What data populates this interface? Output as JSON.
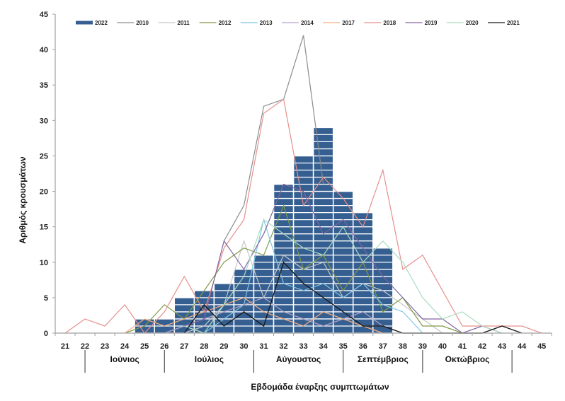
{
  "chart_data": {
    "type": "bar",
    "title": "",
    "xlabel": "Εβδομάδα έναρξης συμπτωμάτων",
    "ylabel": "Αριθμός κρουσμάτων",
    "ylim": [
      0,
      45
    ],
    "yticks": [
      0,
      5,
      10,
      15,
      20,
      25,
      30,
      35,
      40,
      45
    ],
    "x": [
      21,
      22,
      23,
      24,
      25,
      26,
      27,
      28,
      29,
      30,
      31,
      32,
      33,
      34,
      35,
      36,
      37,
      38,
      39,
      40,
      41,
      42,
      43,
      44,
      45
    ],
    "grid": false,
    "legend_position": "top",
    "months": [
      {
        "label": "Ιούνιος",
        "from_week": 22,
        "to_week": 26
      },
      {
        "label": "Ιούλιος",
        "from_week": 26,
        "to_week": 30.5
      },
      {
        "label": "Αύγουστος",
        "from_week": 30.5,
        "to_week": 35
      },
      {
        "label": "Σεπτέμβριος",
        "from_week": 35,
        "to_week": 39
      },
      {
        "label": "Οκτώβριος",
        "from_week": 39,
        "to_week": 43.5
      }
    ],
    "month_separators": [
      22,
      26,
      30.5,
      35,
      39,
      43.5
    ],
    "bar_series": {
      "name": "2022",
      "color": "#365F91",
      "values": [
        0,
        0,
        0,
        0,
        2,
        2,
        5,
        6,
        7,
        9,
        11,
        21,
        25,
        29,
        20,
        17,
        12,
        0,
        0,
        0,
        0,
        0,
        0,
        0,
        0
      ]
    },
    "series": [
      {
        "name": "2010",
        "color": "#8C8C8C",
        "values": [
          null,
          null,
          null,
          null,
          null,
          null,
          null,
          null,
          13,
          18,
          32,
          33,
          42,
          21,
          null,
          null,
          null,
          null,
          null,
          null,
          null,
          null,
          null,
          null,
          null
        ]
      },
      {
        "name": "2011",
        "color": "#C8C8C8",
        "values": [
          null,
          null,
          null,
          null,
          null,
          null,
          0,
          1,
          4,
          13,
          5,
          11,
          9,
          10,
          5,
          7,
          6,
          4,
          2,
          0,
          null,
          null,
          null,
          null,
          null
        ]
      },
      {
        "name": "2012",
        "color": "#7F9A48",
        "values": [
          null,
          null,
          null,
          0,
          1,
          4,
          2,
          6,
          10,
          12,
          11,
          18,
          9,
          11,
          6,
          10,
          3,
          5,
          1,
          1,
          0,
          null,
          null,
          null,
          null
        ]
      },
      {
        "name": "2013",
        "color": "#7EC8E3",
        "values": [
          null,
          null,
          null,
          null,
          null,
          0,
          1,
          0,
          2,
          4,
          16,
          7,
          6,
          7,
          5,
          7,
          4,
          3,
          0,
          null,
          null,
          null,
          null,
          null,
          null
        ]
      },
      {
        "name": "2014",
        "color": "#B3A2C7",
        "values": [
          null,
          null,
          null,
          null,
          null,
          0,
          1,
          2,
          3,
          4,
          5,
          3,
          2,
          1,
          2,
          3,
          1,
          null,
          null,
          null,
          null,
          null,
          null,
          null,
          null
        ]
      },
      {
        "name": "2017",
        "color": "#F4B183",
        "values": [
          null,
          null,
          null,
          0,
          2,
          1,
          2,
          3,
          4,
          5,
          3,
          2,
          1,
          3,
          2,
          1,
          0,
          null,
          null,
          null,
          null,
          null,
          null,
          null,
          null
        ]
      },
      {
        "name": "2018",
        "color": "#E6908C",
        "values": [
          0,
          2,
          1,
          4,
          0,
          3,
          8,
          3,
          12,
          16,
          31,
          33,
          18,
          22,
          19,
          15,
          23,
          9,
          11,
          6,
          1,
          1,
          1,
          1,
          0
        ]
      },
      {
        "name": "2019",
        "color": "#8064A2",
        "values": [
          null,
          null,
          null,
          null,
          null,
          null,
          1,
          2,
          13,
          9,
          14,
          21,
          20,
          14,
          16,
          12,
          8,
          5,
          2,
          2,
          0,
          1,
          0,
          null,
          null
        ]
      },
      {
        "name": "2020",
        "color": "#A9DCC0",
        "values": [
          null,
          null,
          null,
          null,
          null,
          null,
          1,
          0,
          4,
          8,
          16,
          14,
          12,
          11,
          15,
          10,
          13,
          10,
          5,
          2,
          3,
          1,
          0,
          null,
          null
        ]
      },
      {
        "name": "2021",
        "color": "#1A1A1A",
        "values": [
          null,
          null,
          null,
          null,
          null,
          null,
          0,
          4,
          1,
          3,
          1,
          10,
          7,
          5,
          3,
          1,
          1,
          0,
          0,
          0,
          0,
          0,
          1,
          0,
          null
        ]
      }
    ]
  }
}
